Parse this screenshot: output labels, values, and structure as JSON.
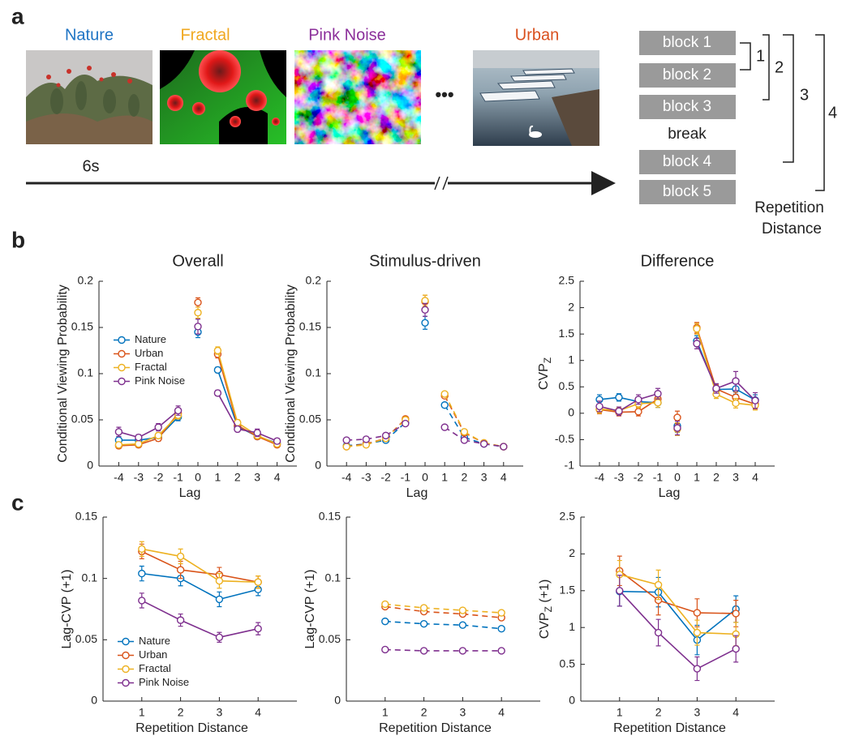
{
  "panel_labels": [
    "a",
    "b",
    "c"
  ],
  "panel_a": {
    "stimuli": [
      {
        "label": "Nature",
        "color": "#1f74c4"
      },
      {
        "label": "Fractal",
        "color": "#f0a820"
      },
      {
        "label": "Pink Noise",
        "color": "#8b2f9a"
      },
      {
        "label": "Urban",
        "color": "#d9501e"
      }
    ],
    "time_label": "6s",
    "blocks": [
      "block 1",
      "block 2",
      "block 3",
      "break",
      "block 4",
      "block 5"
    ],
    "distances": [
      "1",
      "2",
      "3",
      "4"
    ],
    "distance_label": [
      "Repetition",
      "Distance"
    ]
  },
  "chart_data": [
    {
      "type": "line",
      "title": "Overall",
      "xlabel": "Lag",
      "ylabel": "Conditional Viewing Probability",
      "x": [
        -4,
        -3,
        -2,
        -1,
        0,
        1,
        2,
        3,
        4
      ],
      "xlim": [
        -5,
        5
      ],
      "xticks": [
        -4,
        -3,
        -2,
        -1,
        0,
        1,
        2,
        3,
        4
      ],
      "ylim": [
        0,
        0.2
      ],
      "yticks": [
        0,
        0.05,
        0.1,
        0.15,
        0.2
      ],
      "line_style": "solid",
      "legend": "center left",
      "series": [
        {
          "name": "Nature",
          "color": "#0072bd",
          "values": [
            0.028,
            0.028,
            0.031,
            0.053,
            0.145,
            0.104,
            0.043,
            0.032,
            0.025
          ],
          "errors": [
            0.004,
            0.003,
            0.003,
            0.004,
            0.006,
            0.003,
            0.003,
            0.003,
            0.002
          ]
        },
        {
          "name": "Urban",
          "color": "#d95319",
          "values": [
            0.022,
            0.023,
            0.03,
            0.057,
            0.177,
            0.121,
            0.044,
            0.032,
            0.023
          ],
          "errors": [
            0.003,
            0.002,
            0.003,
            0.004,
            0.005,
            0.004,
            0.003,
            0.003,
            0.002
          ]
        },
        {
          "name": "Fractal",
          "color": "#edb120",
          "values": [
            0.023,
            0.024,
            0.033,
            0.055,
            0.166,
            0.125,
            0.047,
            0.033,
            0.024
          ],
          "errors": [
            0.003,
            0.002,
            0.003,
            0.004,
            0.006,
            0.004,
            0.003,
            0.003,
            0.002
          ]
        },
        {
          "name": "Pink Noise",
          "color": "#7e2f8e",
          "values": [
            0.037,
            0.031,
            0.042,
            0.06,
            0.151,
            0.079,
            0.04,
            0.036,
            0.027
          ],
          "errors": [
            0.005,
            0.003,
            0.004,
            0.005,
            0.008,
            0.003,
            0.003,
            0.004,
            0.003
          ]
        }
      ]
    },
    {
      "type": "line",
      "title": "Stimulus-driven",
      "xlabel": "Lag",
      "ylabel": "Conditional Viewing Probability",
      "x": [
        -4,
        -3,
        -2,
        -1,
        0,
        1,
        2,
        3,
        4
      ],
      "xlim": [
        -5,
        5
      ],
      "xticks": [
        -4,
        -3,
        -2,
        -1,
        0,
        1,
        2,
        3,
        4
      ],
      "ylim": [
        0,
        0.2
      ],
      "yticks": [
        0,
        0.05,
        0.1,
        0.15,
        0.2
      ],
      "line_style": "dashed",
      "series": [
        {
          "name": "Nature",
          "color": "#0072bd",
          "values": [
            0.022,
            0.024,
            0.028,
            0.047,
            0.155,
            0.066,
            0.031,
            0.024,
            0.021
          ],
          "errors": [
            0.002,
            0.002,
            0.002,
            0.002,
            0.007,
            0.002,
            0.002,
            0.002,
            0.002
          ]
        },
        {
          "name": "Urban",
          "color": "#d95319",
          "values": [
            0.021,
            0.024,
            0.03,
            0.051,
            0.178,
            0.076,
            0.036,
            0.025,
            0.021
          ],
          "errors": [
            0.002,
            0.002,
            0.002,
            0.002,
            0.007,
            0.002,
            0.002,
            0.002,
            0.002
          ]
        },
        {
          "name": "Fractal",
          "color": "#edb120",
          "values": [
            0.021,
            0.023,
            0.03,
            0.05,
            0.179,
            0.078,
            0.037,
            0.025,
            0.021
          ],
          "errors": [
            0.002,
            0.002,
            0.002,
            0.002,
            0.006,
            0.002,
            0.002,
            0.002,
            0.002
          ]
        },
        {
          "name": "Pink Noise",
          "color": "#7e2f8e",
          "values": [
            0.028,
            0.029,
            0.033,
            0.046,
            0.169,
            0.042,
            0.028,
            0.024,
            0.021
          ],
          "errors": [
            0.002,
            0.002,
            0.002,
            0.002,
            0.007,
            0.002,
            0.002,
            0.002,
            0.002
          ]
        }
      ]
    },
    {
      "type": "line",
      "title": "Difference",
      "xlabel": "Lag",
      "ylabel": "CVP",
      "ylabel_subscript": "Z",
      "x": [
        -4,
        -3,
        -2,
        -1,
        0,
        1,
        2,
        3,
        4
      ],
      "xlim": [
        -5,
        5
      ],
      "xticks": [
        -4,
        -3,
        -2,
        -1,
        0,
        1,
        2,
        3,
        4
      ],
      "ylim": [
        -1,
        2.5
      ],
      "yticks": [
        -1,
        -0.5,
        0,
        0.5,
        1,
        1.5,
        2,
        2.5
      ],
      "line_style": "solid",
      "series": [
        {
          "name": "Nature",
          "color": "#0072bd",
          "values": [
            0.26,
            0.3,
            0.22,
            0.2,
            -0.24,
            1.37,
            0.45,
            0.46,
            0.25
          ],
          "errors": [
            0.09,
            0.07,
            0.08,
            0.09,
            0.12,
            0.1,
            0.08,
            0.1,
            0.1
          ]
        },
        {
          "name": "Urban",
          "color": "#d95319",
          "values": [
            0.07,
            0.02,
            0.03,
            0.27,
            -0.08,
            1.62,
            0.46,
            0.3,
            0.17
          ],
          "errors": [
            0.08,
            0.07,
            0.08,
            0.09,
            0.12,
            0.1,
            0.08,
            0.1,
            0.09
          ]
        },
        {
          "name": "Fractal",
          "color": "#edb120",
          "values": [
            0.08,
            0.05,
            0.18,
            0.2,
            -0.3,
            1.6,
            0.36,
            0.19,
            0.15
          ],
          "errors": [
            0.08,
            0.07,
            0.08,
            0.09,
            0.12,
            0.1,
            0.08,
            0.09,
            0.09
          ]
        },
        {
          "name": "Pink Noise",
          "color": "#7e2f8e",
          "values": [
            0.13,
            0.04,
            0.26,
            0.37,
            -0.28,
            1.32,
            0.47,
            0.61,
            0.24
          ],
          "errors": [
            0.1,
            0.08,
            0.09,
            0.1,
            0.13,
            0.1,
            0.09,
            0.18,
            0.15
          ]
        }
      ]
    },
    {
      "type": "line",
      "xlabel": "Repetition Distance",
      "ylabel": "Lag-CVP (+1)",
      "x": [
        1,
        2,
        3,
        4
      ],
      "xlim": [
        0,
        5
      ],
      "xticks": [
        1,
        2,
        3,
        4
      ],
      "ylim": [
        0,
        0.15
      ],
      "yticks": [
        0,
        0.05,
        0.1,
        0.15
      ],
      "line_style": "solid",
      "legend": "lower left",
      "series": [
        {
          "name": "Nature",
          "color": "#0072bd",
          "values": [
            0.104,
            0.1,
            0.083,
            0.091
          ],
          "errors": [
            0.006,
            0.006,
            0.006,
            0.005
          ]
        },
        {
          "name": "Urban",
          "color": "#d95319",
          "values": [
            0.122,
            0.107,
            0.103,
            0.097
          ],
          "errors": [
            0.006,
            0.007,
            0.006,
            0.005
          ]
        },
        {
          "name": "Fractal",
          "color": "#edb120",
          "values": [
            0.124,
            0.118,
            0.098,
            0.097
          ],
          "errors": [
            0.006,
            0.006,
            0.006,
            0.005
          ]
        },
        {
          "name": "Pink Noise",
          "color": "#7e2f8e",
          "values": [
            0.082,
            0.066,
            0.052,
            0.059
          ],
          "errors": [
            0.006,
            0.005,
            0.004,
            0.005
          ]
        }
      ]
    },
    {
      "type": "line",
      "xlabel": "Repetition Distance",
      "ylabel": "Lag-CVP (+1)",
      "x": [
        1,
        2,
        3,
        4
      ],
      "xlim": [
        0,
        5
      ],
      "xticks": [
        1,
        2,
        3,
        4
      ],
      "ylim": [
        0,
        0.15
      ],
      "yticks": [
        0,
        0.05,
        0.1,
        0.15
      ],
      "line_style": "dashed",
      "series": [
        {
          "name": "Nature",
          "color": "#0072bd",
          "values": [
            0.065,
            0.063,
            0.062,
            0.059
          ],
          "errors": [
            0.001,
            0.001,
            0.001,
            0.001
          ]
        },
        {
          "name": "Urban",
          "color": "#d95319",
          "values": [
            0.077,
            0.073,
            0.071,
            0.068
          ],
          "errors": [
            0.001,
            0.001,
            0.001,
            0.001
          ]
        },
        {
          "name": "Fractal",
          "color": "#edb120",
          "values": [
            0.079,
            0.076,
            0.074,
            0.072
          ],
          "errors": [
            0.001,
            0.001,
            0.001,
            0.001
          ]
        },
        {
          "name": "Pink Noise",
          "color": "#7e2f8e",
          "values": [
            0.042,
            0.041,
            0.041,
            0.041
          ],
          "errors": [
            0.001,
            0.001,
            0.001,
            0.001
          ]
        }
      ]
    },
    {
      "type": "line",
      "xlabel": "Repetition Distance",
      "ylabel": "CVP",
      "ylabel_subscript": "Z",
      "ylabel_suffix": " (+1)",
      "x": [
        1,
        2,
        3,
        4
      ],
      "xlim": [
        0,
        5
      ],
      "xticks": [
        1,
        2,
        3,
        4
      ],
      "ylim": [
        0,
        2.5
      ],
      "yticks": [
        0,
        0.5,
        1,
        1.5,
        2,
        2.5
      ],
      "line_style": "solid",
      "series": [
        {
          "name": "Nature",
          "color": "#0072bd",
          "values": [
            1.49,
            1.48,
            0.83,
            1.25
          ],
          "errors": [
            0.2,
            0.2,
            0.2,
            0.18
          ]
        },
        {
          "name": "Urban",
          "color": "#d95319",
          "values": [
            1.77,
            1.37,
            1.2,
            1.19
          ],
          "errors": [
            0.2,
            0.2,
            0.19,
            0.18
          ]
        },
        {
          "name": "Fractal",
          "color": "#edb120",
          "values": [
            1.72,
            1.58,
            0.93,
            0.91
          ],
          "errors": [
            0.19,
            0.2,
            0.17,
            0.16
          ]
        },
        {
          "name": "Pink Noise",
          "color": "#7e2f8e",
          "values": [
            1.5,
            0.93,
            0.44,
            0.71
          ],
          "errors": [
            0.21,
            0.18,
            0.16,
            0.18
          ]
        }
      ]
    }
  ]
}
